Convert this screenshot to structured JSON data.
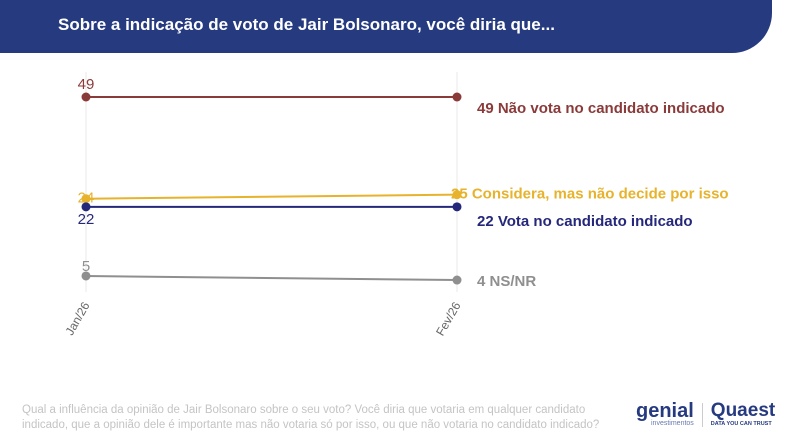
{
  "header": {
    "title": "Sobre a indicação de voto de Jair Bolsonaro, você diria que..."
  },
  "chart_data": {
    "type": "line",
    "categories": [
      "Jan/26",
      "Fev/26"
    ],
    "ylim": [
      0,
      55
    ],
    "grid": false,
    "series": [
      {
        "name": "Não vota no candidato indicado",
        "values": [
          49,
          49
        ],
        "color": "#8b3a3a"
      },
      {
        "name": "Considera, mas não decide por isso",
        "values": [
          24,
          25
        ],
        "color": "#e8b32c"
      },
      {
        "name": "Vota no candidato indicado",
        "values": [
          22,
          22
        ],
        "color": "#25287a"
      },
      {
        "name": "NS/NR",
        "values": [
          5,
          4
        ],
        "color": "#8f8f8f"
      }
    ]
  },
  "footnote": "Qual a influência da opinião de Jair Bolsonaro sobre o seu voto? Você diria que votaria em qualquer candidato indicado, que a opinião dele é importante mas não votaria só por isso, ou que não votaria no candidato indicado?",
  "logos": {
    "genial": "genial",
    "genial_sub": "investimentos",
    "quaest": "Quaest",
    "quaest_sub": "DATA YOU CAN TRUST"
  }
}
